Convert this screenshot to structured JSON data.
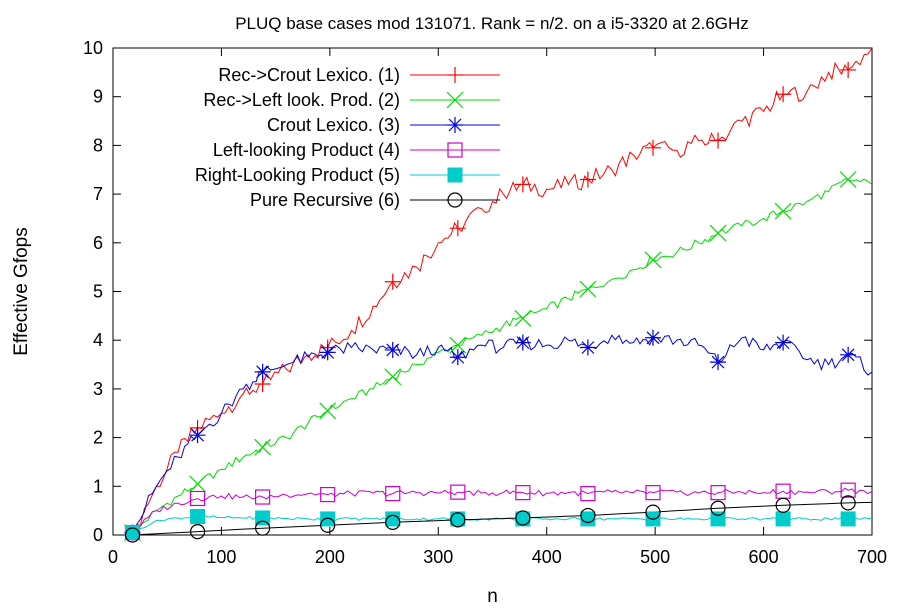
{
  "chart_data": {
    "type": "line",
    "title": "PLUQ base cases mod 131071. Rank = n/2. on a i5-3320 at 2.6GHz",
    "xlabel": "n",
    "ylabel": "Effective Gfops",
    "xlim": [
      0,
      700
    ],
    "ylim": [
      0,
      10
    ],
    "x_ticks": [
      "0",
      "100",
      "200",
      "300",
      "400",
      "500",
      "600",
      "700"
    ],
    "y_ticks": [
      "0",
      "1",
      "2",
      "3",
      "4",
      "5",
      "6",
      "7",
      "8",
      "9",
      "10"
    ],
    "grid": false,
    "legend_position": "top-left",
    "series": [
      {
        "name": "Rec->Crout Lexico. (1)",
        "color": "#ff0000",
        "marker": "plus",
        "x": [
          18,
          40,
          60,
          78,
          100,
          120,
          138,
          160,
          180,
          198,
          220,
          240,
          258,
          280,
          300,
          318,
          340,
          360,
          378,
          400,
          420,
          438,
          460,
          480,
          498,
          520,
          540,
          558,
          580,
          600,
          618,
          640,
          660,
          678,
          700
        ],
        "y": [
          0.05,
          1.0,
          1.7,
          2.2,
          2.5,
          2.9,
          3.1,
          3.4,
          3.7,
          3.85,
          4.2,
          4.7,
          5.2,
          5.5,
          6.0,
          6.3,
          6.7,
          7.0,
          7.2,
          7.1,
          7.2,
          7.3,
          7.5,
          7.8,
          7.95,
          7.9,
          8.1,
          8.1,
          8.5,
          8.7,
          9.05,
          9.1,
          9.5,
          9.55,
          10.0
        ]
      },
      {
        "name": "Rec->Left look. Prod. (2)",
        "color": "#00dd00",
        "marker": "x",
        "x": [
          18,
          40,
          60,
          78,
          100,
          120,
          138,
          160,
          180,
          198,
          220,
          240,
          258,
          280,
          300,
          318,
          340,
          360,
          378,
          400,
          420,
          438,
          460,
          480,
          498,
          520,
          540,
          558,
          580,
          600,
          618,
          640,
          660,
          678,
          700
        ],
        "y": [
          0.05,
          0.5,
          0.8,
          1.05,
          1.35,
          1.6,
          1.8,
          2.0,
          2.3,
          2.55,
          2.8,
          3.0,
          3.25,
          3.5,
          3.75,
          3.9,
          4.1,
          4.3,
          4.45,
          4.65,
          4.85,
          5.05,
          5.25,
          5.45,
          5.65,
          5.8,
          6.0,
          6.2,
          6.35,
          6.5,
          6.65,
          6.85,
          7.05,
          7.3,
          7.2
        ]
      },
      {
        "name": "Crout Lexico. (3)",
        "color": "#0000dd",
        "marker": "star",
        "x": [
          18,
          40,
          60,
          78,
          100,
          120,
          138,
          160,
          180,
          198,
          220,
          240,
          258,
          280,
          300,
          318,
          340,
          360,
          378,
          400,
          420,
          438,
          460,
          480,
          498,
          520,
          540,
          558,
          580,
          600,
          618,
          640,
          660,
          678,
          700
        ],
        "y": [
          0.05,
          1.0,
          1.6,
          2.05,
          2.5,
          3.0,
          3.35,
          3.5,
          3.65,
          3.75,
          3.85,
          3.8,
          3.8,
          3.7,
          3.85,
          3.65,
          3.9,
          3.85,
          3.95,
          3.9,
          4.0,
          3.85,
          4.1,
          3.95,
          4.05,
          4.0,
          3.9,
          3.55,
          4.05,
          3.8,
          3.95,
          3.6,
          3.5,
          3.7,
          3.35
        ]
      },
      {
        "name": "Left-looking Product (4)",
        "color": "#cc00cc",
        "marker": "square-open",
        "x": [
          18,
          40,
          60,
          78,
          100,
          120,
          138,
          160,
          180,
          198,
          220,
          240,
          258,
          280,
          300,
          318,
          340,
          360,
          378,
          400,
          420,
          438,
          460,
          480,
          498,
          520,
          540,
          558,
          580,
          600,
          618,
          640,
          660,
          678,
          700
        ],
        "y": [
          0.05,
          0.5,
          0.65,
          0.75,
          0.8,
          0.78,
          0.78,
          0.82,
          0.85,
          0.83,
          0.85,
          0.86,
          0.85,
          0.87,
          0.86,
          0.88,
          0.86,
          0.87,
          0.87,
          0.86,
          0.87,
          0.85,
          0.88,
          0.87,
          0.87,
          0.88,
          0.86,
          0.87,
          0.88,
          0.87,
          0.9,
          0.88,
          0.89,
          0.92,
          0.9
        ]
      },
      {
        "name": "Right-Looking Product (5)",
        "color": "#00cccc",
        "marker": "square-filled",
        "x": [
          18,
          40,
          60,
          78,
          100,
          120,
          138,
          160,
          180,
          198,
          220,
          240,
          258,
          280,
          300,
          318,
          340,
          360,
          378,
          400,
          420,
          438,
          460,
          480,
          498,
          520,
          540,
          558,
          580,
          600,
          618,
          640,
          660,
          678,
          700
        ],
        "y": [
          0.05,
          0.3,
          0.35,
          0.38,
          0.36,
          0.35,
          0.35,
          0.34,
          0.33,
          0.33,
          0.33,
          0.33,
          0.33,
          0.33,
          0.33,
          0.33,
          0.33,
          0.33,
          0.33,
          0.33,
          0.33,
          0.33,
          0.33,
          0.33,
          0.33,
          0.33,
          0.33,
          0.33,
          0.33,
          0.33,
          0.33,
          0.33,
          0.33,
          0.33,
          0.33
        ]
      },
      {
        "name": "Pure Recursive (6)",
        "color": "#000000",
        "marker": "circle-open",
        "x": [
          18,
          78,
          138,
          198,
          258,
          318,
          378,
          438,
          498,
          558,
          618,
          678,
          700
        ],
        "y": [
          0.0,
          0.07,
          0.14,
          0.2,
          0.26,
          0.31,
          0.35,
          0.4,
          0.47,
          0.55,
          0.61,
          0.66,
          0.67
        ]
      }
    ]
  }
}
